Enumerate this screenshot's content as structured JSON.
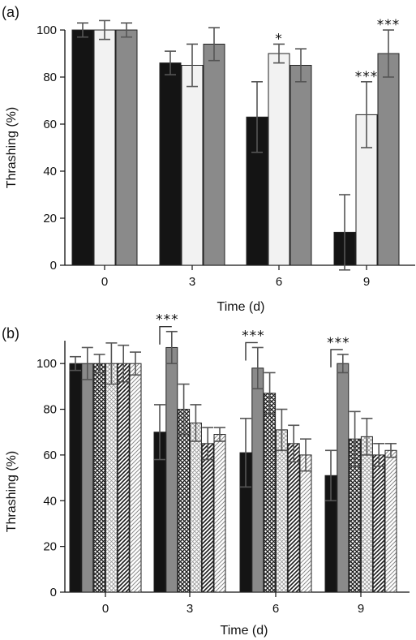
{
  "chart_data": [
    {
      "panel_label": "(a)",
      "type": "bar",
      "xlabel": "Time (d)",
      "ylabel": "Thrashing (%)",
      "ylim": [
        0,
        100
      ],
      "yticks": [
        "0",
        "20",
        "40",
        "60",
        "80",
        "100"
      ],
      "categories": [
        "0",
        "3",
        "6",
        "9"
      ],
      "grid": false,
      "legend": "none",
      "series": [
        {
          "fill": "#141414",
          "hatch": "none",
          "values": [
            100,
            86,
            63,
            14
          ],
          "errors": [
            3,
            5,
            15,
            16
          ]
        },
        {
          "fill": "#f2f2f2",
          "hatch": "none",
          "values": [
            100,
            85,
            90,
            64
          ],
          "errors": [
            4,
            9,
            4,
            14
          ]
        },
        {
          "fill": "#8a8a8a",
          "hatch": "none",
          "values": [
            100,
            94,
            85,
            90
          ],
          "errors": [
            3,
            7,
            7,
            10
          ]
        }
      ],
      "annotations": [
        {
          "category": "6",
          "series_index": 1,
          "text": "*"
        },
        {
          "category": "9",
          "series_index": 1,
          "text": "***"
        },
        {
          "category": "9",
          "series_index": 2,
          "text": "***"
        }
      ]
    },
    {
      "panel_label": "(b)",
      "type": "bar",
      "xlabel": "Time (d)",
      "ylabel": "Thrashing (%)",
      "ylim": [
        0,
        110
      ],
      "yticks": [
        "0",
        "20",
        "40",
        "60",
        "80",
        "100"
      ],
      "categories": [
        "0",
        "3",
        "6",
        "9"
      ],
      "grid": false,
      "legend": "none",
      "series": [
        {
          "fill": "#141414",
          "hatch": "none",
          "values": [
            100,
            70,
            61,
            51
          ],
          "errors": [
            3,
            12,
            15,
            11
          ]
        },
        {
          "fill": "#8a8a8a",
          "hatch": "none",
          "values": [
            100,
            107,
            98,
            100
          ],
          "errors": [
            7,
            7,
            9,
            4
          ]
        },
        {
          "fill": "#ffffff",
          "hatch": "crosshatch-dense",
          "values": [
            100,
            80,
            87,
            67
          ],
          "errors": [
            4,
            11,
            9,
            12
          ]
        },
        {
          "fill": "#ffffff",
          "hatch": "crosshatch-light",
          "values": [
            100,
            74,
            71,
            68
          ],
          "errors": [
            9,
            8,
            9,
            8
          ]
        },
        {
          "fill": "#ffffff",
          "hatch": "diagonal-dense",
          "values": [
            100,
            65,
            65,
            60
          ],
          "errors": [
            8,
            7,
            8,
            5
          ]
        },
        {
          "fill": "#ffffff",
          "hatch": "diagonal-light",
          "values": [
            100,
            69,
            60,
            62
          ],
          "errors": [
            5,
            3,
            7,
            3
          ]
        }
      ],
      "annotations": [
        {
          "category": "3",
          "bracket_series": [
            0,
            1
          ],
          "text": "***"
        },
        {
          "category": "6",
          "bracket_series": [
            0,
            1
          ],
          "text": "***"
        },
        {
          "category": "9",
          "bracket_series": [
            0,
            1
          ],
          "text": "***"
        }
      ]
    }
  ]
}
